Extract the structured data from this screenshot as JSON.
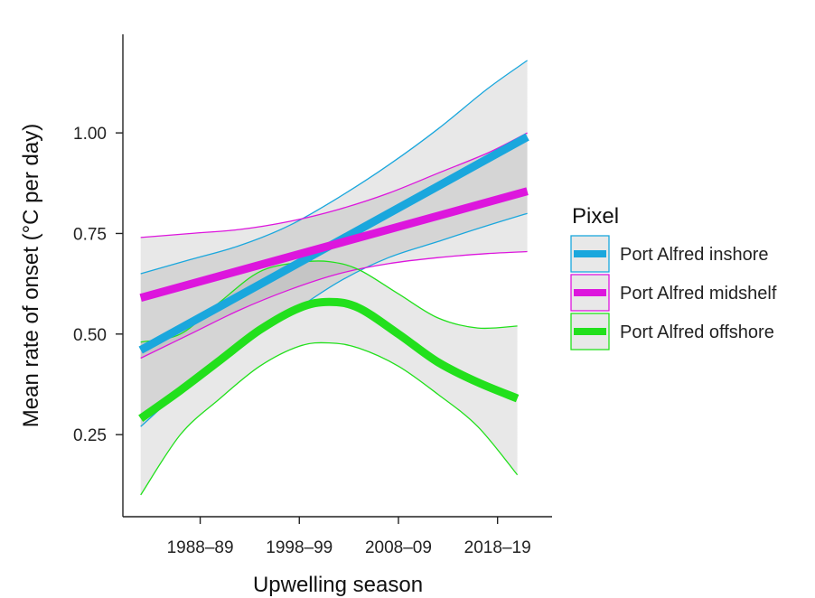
{
  "chart_data": {
    "type": "line",
    "xlabel": "Upwelling season",
    "ylabel": "Mean rate of onset (°C per day)",
    "x_ticks": [
      {
        "value": 1988,
        "label": "1988–89"
      },
      {
        "value": 1998,
        "label": "1998–99"
      },
      {
        "value": 2008,
        "label": "2008–09"
      },
      {
        "value": 2018,
        "label": "2018–19"
      }
    ],
    "y_ticks": [
      {
        "value": 0.25,
        "label": "0.25"
      },
      {
        "value": 0.5,
        "label": "0.50"
      },
      {
        "value": 0.75,
        "label": "0.75"
      },
      {
        "value": 1.0,
        "label": "1.00"
      }
    ],
    "xlim": [
      1980.2,
      2023.5
    ],
    "ylim": [
      0.046,
      1.245
    ],
    "grid": false,
    "legend": {
      "title": "Pixel",
      "placement": "right"
    },
    "series": [
      {
        "name": "Port Alfred inshore",
        "color": "#1aa7dd",
        "x": [
          1982,
          2021
        ],
        "y": [
          0.46,
          0.99
        ],
        "ci_x": [
          1982,
          1987,
          1992,
          1997,
          2002,
          2007,
          2012,
          2017,
          2021
        ],
        "ci_upper": [
          0.65,
          0.685,
          0.72,
          0.77,
          0.84,
          0.92,
          1.01,
          1.11,
          1.18
        ],
        "ci_lower": [
          0.27,
          0.38,
          0.47,
          0.55,
          0.63,
          0.69,
          0.73,
          0.77,
          0.8
        ]
      },
      {
        "name": "Port Alfred midshelf",
        "color": "#dd16dd",
        "x": [
          1982,
          2021
        ],
        "y": [
          0.59,
          0.855
        ],
        "ci_x": [
          1982,
          1987,
          1992,
          1997,
          2002,
          2007,
          2012,
          2017,
          2021
        ],
        "ci_upper": [
          0.74,
          0.75,
          0.76,
          0.78,
          0.81,
          0.85,
          0.9,
          0.95,
          1.0
        ],
        "ci_lower": [
          0.44,
          0.5,
          0.56,
          0.61,
          0.65,
          0.675,
          0.69,
          0.7,
          0.705
        ]
      },
      {
        "name": "Port Alfred offshore",
        "color": "#22e01c",
        "x": [
          1982,
          1986,
          1990,
          1994,
          1998,
          2001,
          2004,
          2008,
          2012,
          2016,
          2020
        ],
        "y": [
          0.29,
          0.36,
          0.435,
          0.51,
          0.565,
          0.58,
          0.565,
          0.5,
          0.43,
          0.38,
          0.34
        ],
        "ci_x": [
          1982,
          1986,
          1990,
          1994,
          1998,
          2001,
          2004,
          2008,
          2012,
          2016,
          2020
        ],
        "ci_upper": [
          0.48,
          0.5,
          0.58,
          0.655,
          0.678,
          0.68,
          0.66,
          0.6,
          0.54,
          0.515,
          0.52
        ],
        "ci_lower": [
          0.1,
          0.25,
          0.34,
          0.42,
          0.47,
          0.478,
          0.465,
          0.42,
          0.35,
          0.27,
          0.15
        ]
      }
    ]
  }
}
